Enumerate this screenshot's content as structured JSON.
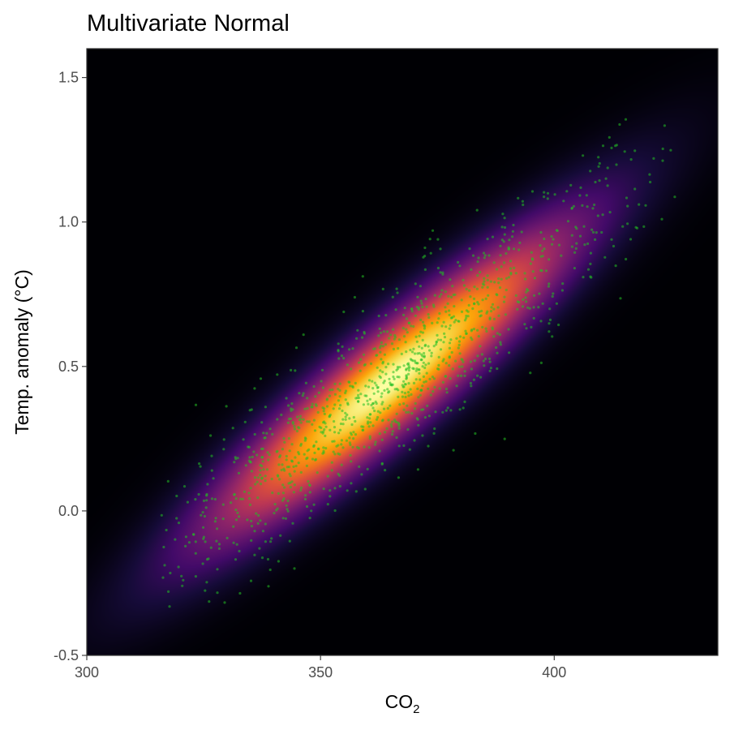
{
  "chart_data": {
    "type": "heatmap",
    "title": "Multivariate Normal",
    "xlabel": "CO",
    "xlabel_subscript": "2",
    "ylabel": "Temp. anomaly (°C)",
    "xlim": [
      300,
      435
    ],
    "ylim": [
      -0.5,
      1.6
    ],
    "x_ticks": [
      300,
      350,
      400
    ],
    "x_tick_labels": [
      "300",
      "350",
      "400"
    ],
    "y_ticks": [
      -0.5,
      0.0,
      0.5,
      1.0,
      1.5
    ],
    "y_tick_labels": [
      "-0.5",
      "0.0",
      "0.5",
      "1.0",
      "1.5"
    ],
    "grid": false,
    "legend": "none",
    "density": {
      "distribution": "bivariate normal",
      "mean": [
        365,
        0.45
      ],
      "sd": [
        26,
        0.36
      ],
      "correlation": 0.92,
      "colormap": "inferno"
    },
    "points": {
      "color": "#22c022",
      "count": 1200,
      "x_range": [
        316,
        426
      ],
      "y_range": [
        -0.35,
        1.48
      ],
      "trend": "positive linear"
    }
  }
}
